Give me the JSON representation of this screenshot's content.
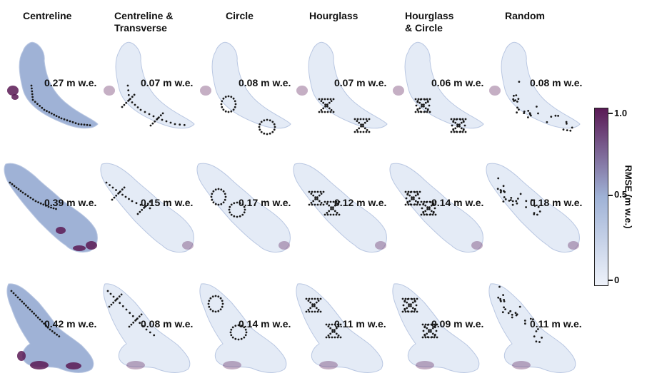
{
  "columns": [
    "Centreline",
    "Centreline &\nTransverse",
    "Circle",
    "Hourglass",
    "Hourglass\n& Circle",
    "Random"
  ],
  "rows": [
    {
      "glacier": "glacier-a",
      "values": [
        "0.27 m w.e.",
        "0.07 m w.e.",
        "0.08 m w.e.",
        "0.07 m w.e.",
        "0.06 m w.e.",
        "0.08 m w.e."
      ]
    },
    {
      "glacier": "glacier-b",
      "values": [
        "0.39 m w.e.",
        "0.15 m w.e.",
        "0.17 m w.e.",
        "0.12 m w.e.",
        "0.14 m w.e.",
        "0.18 m w.e."
      ]
    },
    {
      "glacier": "glacier-c",
      "values": [
        "0.42 m w.e.",
        "0.08 m w.e.",
        "0.14 m w.e.",
        "0.11 m w.e.",
        "0.09 m w.e.",
        "0.11 m w.e."
      ]
    }
  ],
  "colorbar": {
    "label": "RMSE (m w.e.)",
    "ticks": [
      "1.0",
      "0.5",
      "0"
    ],
    "colors": {
      "low": "#eef2fa",
      "mid": "#9fb2d6",
      "high": "#5a1a55"
    }
  },
  "colors": {
    "sample_dots": "#1a1a1a",
    "glacier_base": "#e4ebf6",
    "glacier_edge": "#b9c7e2"
  }
}
